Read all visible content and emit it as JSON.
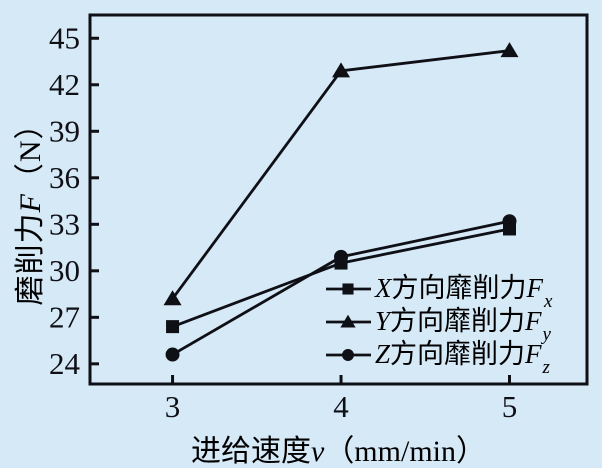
{
  "background_color": "#d6e9f7",
  "ink_color": "#0f0f16",
  "chart_data": {
    "type": "line",
    "title": "",
    "x": [
      3,
      4,
      5
    ],
    "x_ticks": [
      3,
      4,
      5
    ],
    "y_ticks": [
      24,
      27,
      30,
      33,
      36,
      39,
      42,
      45
    ],
    "xlim": [
      2.51,
      5.46
    ],
    "ylim": [
      22.7,
      46.5
    ],
    "grid": false,
    "legend_position": "inside lower-right",
    "xlabel_cjk": "进给速度",
    "xlabel_var": "v",
    "xlabel_unit": "（mm/min）",
    "ylabel_cjk": "磨削力",
    "ylabel_var": "F",
    "ylabel_unit": "（N）",
    "series": [
      {
        "name": "X方向靡削力Fx",
        "name_letter": "X",
        "name_mid": "方向靡削力",
        "name_f": "F",
        "name_sub": "x",
        "marker": "square",
        "values": [
          26.4,
          30.5,
          32.7
        ]
      },
      {
        "name": "Y方向靡削力Fy",
        "name_letter": "Y",
        "name_mid": "方向靡削力",
        "name_f": "F",
        "name_sub": "y",
        "marker": "triangle",
        "values": [
          28.2,
          42.9,
          44.2
        ]
      },
      {
        "name": "Z方向靡削力Fz",
        "name_letter": "Z",
        "name_mid": "方向靡削力",
        "name_f": "F",
        "name_sub": "z",
        "marker": "circle",
        "values": [
          24.6,
          30.9,
          33.2
        ]
      }
    ]
  }
}
